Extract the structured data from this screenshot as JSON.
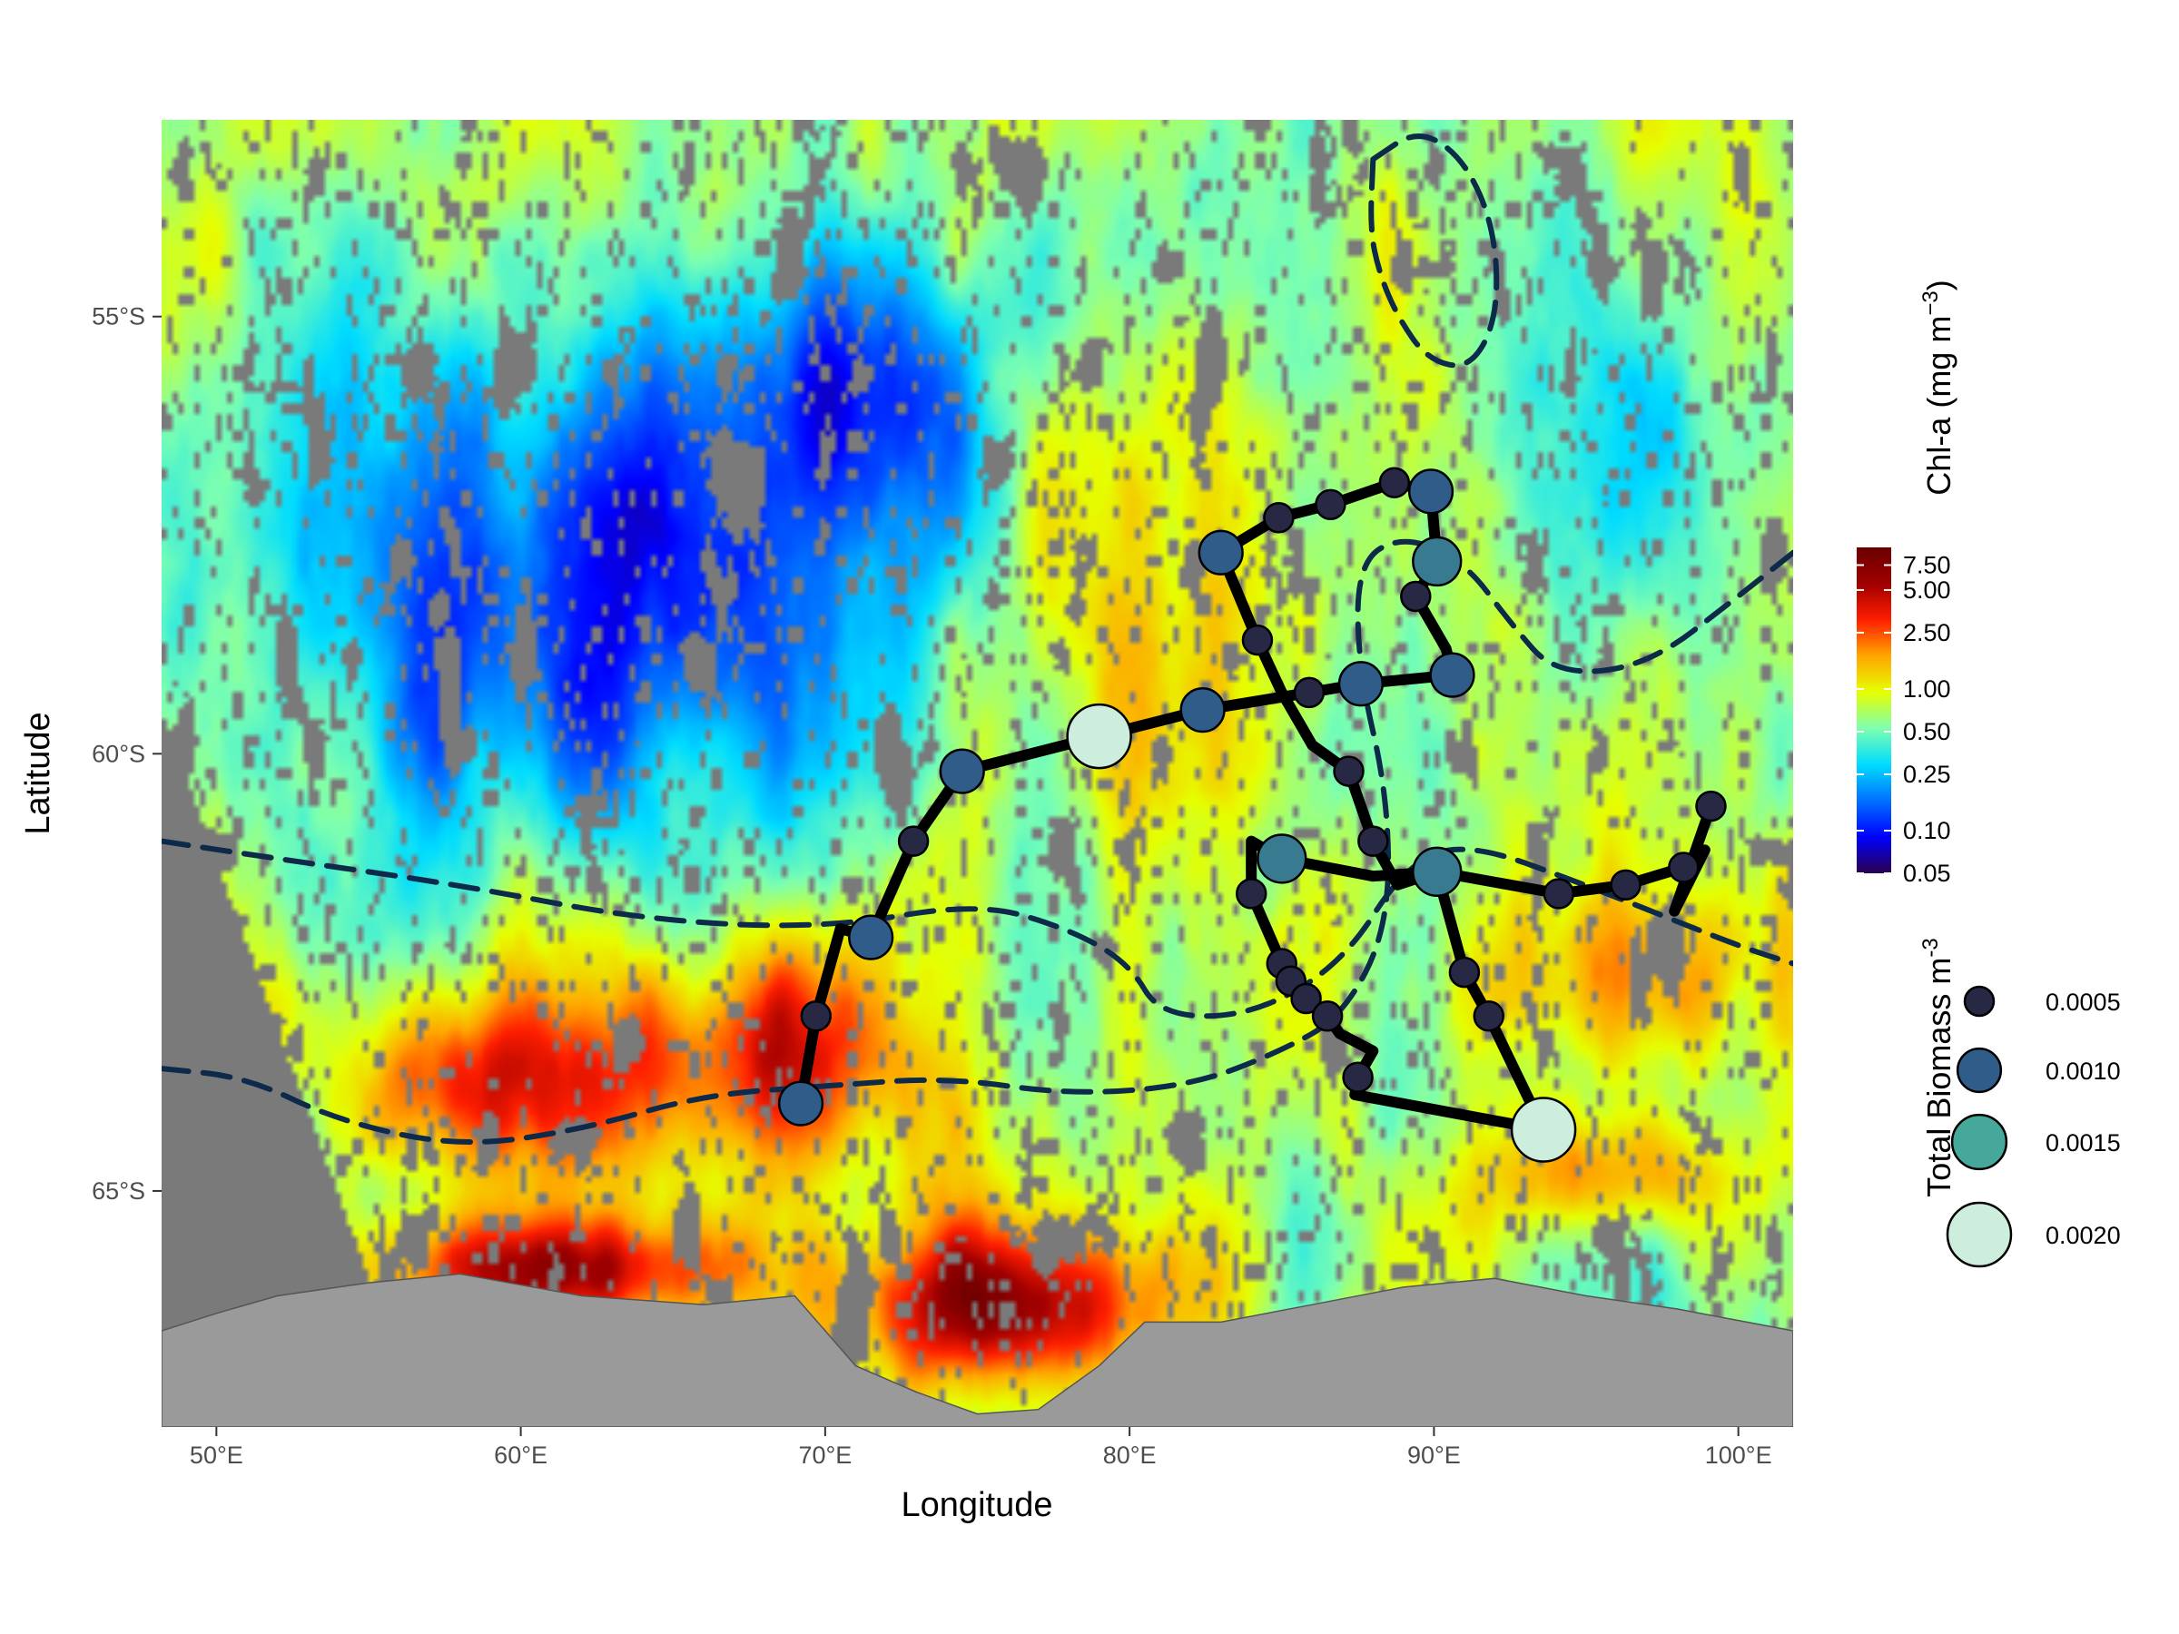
{
  "chart_data": {
    "type": "map",
    "xlabel": "Longitude",
    "ylabel": "Latitude",
    "xlim": [
      48.2,
      101.8
    ],
    "ylim": [
      -67.7,
      -52.75
    ],
    "x_ticks": [
      50,
      60,
      70,
      80,
      90,
      100
    ],
    "x_tick_labels": [
      "50°E",
      "60°E",
      "70°E",
      "80°E",
      "90°E",
      "100°E"
    ],
    "y_ticks": [
      -55,
      -60,
      -65
    ],
    "y_tick_labels": [
      "55°S",
      "60°S",
      "65°S"
    ],
    "background": "satellite chlorophyll-a raster",
    "colors": {
      "missing_data": "#7a7a7a",
      "land": "#9a9a9a",
      "track": "#000000",
      "front_lines": "#0d2a4a"
    },
    "colorbar": {
      "title": "Chl-a (mg m",
      "title_superscript": "−3",
      "title_close": ")",
      "scale": "log",
      "ticks": [
        7.5,
        5.0,
        2.5,
        1.0,
        0.5,
        0.25,
        0.1,
        0.05
      ],
      "tick_labels": [
        "7.50",
        "5.00",
        "2.50",
        "1.00",
        "0.50",
        "0.25",
        "0.10",
        "0.05"
      ],
      "range": [
        0.05,
        10
      ],
      "palette": [
        "#2a004e",
        "#0000ff",
        "#0070ff",
        "#00dcff",
        "#7dffb0",
        "#e6ff00",
        "#ffa600",
        "#ff1e00",
        "#a00000",
        "#6a0000"
      ]
    },
    "size_legend": {
      "title": "Total Biomass m",
      "title_superscript": "-3",
      "entries": [
        {
          "value": 0.0005,
          "label": "0.0005",
          "color": "#272844"
        },
        {
          "value": 0.001,
          "label": "0.0010",
          "color": "#2f5c88"
        },
        {
          "value": 0.0015,
          "label": "0.0015",
          "color": "#46a89a"
        },
        {
          "value": 0.002,
          "label": "0.0020",
          "color": "#cdeedc"
        }
      ]
    },
    "track": [
      [
        69.2,
        -64.0
      ],
      [
        69.7,
        -63.0
      ],
      [
        70.5,
        -62.0
      ],
      [
        71.5,
        -62.1
      ],
      [
        72.9,
        -61.0
      ],
      [
        74.5,
        -60.2
      ],
      [
        79.0,
        -59.8
      ],
      [
        82.4,
        -59.5
      ],
      [
        85.9,
        -59.3
      ],
      [
        87.6,
        -59.2
      ],
      [
        90.6,
        -59.1
      ],
      [
        90.4,
        -58.8
      ],
      [
        89.4,
        -58.2
      ],
      [
        90.1,
        -57.8
      ],
      [
        89.9,
        -57.0
      ],
      [
        88.7,
        -56.9
      ],
      [
        86.6,
        -57.15
      ],
      [
        84.9,
        -57.3
      ],
      [
        83.0,
        -57.7
      ],
      [
        84.2,
        -58.7
      ],
      [
        85.0,
        -59.3
      ],
      [
        86.0,
        -59.9
      ],
      [
        87.2,
        -60.2
      ],
      [
        88.0,
        -61.0
      ],
      [
        88.8,
        -61.5
      ],
      [
        90.1,
        -61.35
      ],
      [
        91.0,
        -62.5
      ],
      [
        91.8,
        -63.0
      ],
      [
        93.6,
        -64.3
      ],
      [
        87.4,
        -63.9
      ],
      [
        87.5,
        -63.7
      ],
      [
        88.0,
        -63.4
      ],
      [
        86.9,
        -63.2
      ],
      [
        86.5,
        -63.0
      ],
      [
        85.8,
        -62.8
      ],
      [
        85.0,
        -62.4
      ],
      [
        84.0,
        -61.6
      ],
      [
        84.0,
        -61.0
      ],
      [
        85.0,
        -61.2
      ],
      [
        88.0,
        -61.4
      ],
      [
        90.1,
        -61.35
      ],
      [
        94.1,
        -61.6
      ],
      [
        96.3,
        -61.5
      ],
      [
        98.2,
        -61.3
      ],
      [
        98.9,
        -61.1
      ],
      [
        97.9,
        -61.8
      ],
      [
        99.1,
        -60.6
      ]
    ],
    "stations": [
      {
        "lon": 69.2,
        "lat": -64.0,
        "biomass": 0.001
      },
      {
        "lon": 69.7,
        "lat": -63.0,
        "biomass": 0.0005
      },
      {
        "lon": 71.5,
        "lat": -62.1,
        "biomass": 0.001
      },
      {
        "lon": 72.9,
        "lat": -61.0,
        "biomass": 0.0005
      },
      {
        "lon": 74.5,
        "lat": -60.2,
        "biomass": 0.001
      },
      {
        "lon": 79.0,
        "lat": -59.8,
        "biomass": 0.002
      },
      {
        "lon": 82.4,
        "lat": -59.5,
        "biomass": 0.001
      },
      {
        "lon": 85.9,
        "lat": -59.3,
        "biomass": 0.0005
      },
      {
        "lon": 87.6,
        "lat": -59.2,
        "biomass": 0.001
      },
      {
        "lon": 90.6,
        "lat": -59.1,
        "biomass": 0.001
      },
      {
        "lon": 89.4,
        "lat": -58.2,
        "biomass": 0.0005
      },
      {
        "lon": 90.1,
        "lat": -57.8,
        "biomass": 0.0012
      },
      {
        "lon": 89.9,
        "lat": -57.0,
        "biomass": 0.001
      },
      {
        "lon": 88.7,
        "lat": -56.9,
        "biomass": 0.0005
      },
      {
        "lon": 86.6,
        "lat": -57.15,
        "biomass": 0.0005
      },
      {
        "lon": 84.9,
        "lat": -57.3,
        "biomass": 0.0005
      },
      {
        "lon": 83.0,
        "lat": -57.7,
        "biomass": 0.001
      },
      {
        "lon": 84.2,
        "lat": -58.7,
        "biomass": 0.0005
      },
      {
        "lon": 87.2,
        "lat": -60.2,
        "biomass": 0.0005
      },
      {
        "lon": 88.0,
        "lat": -61.0,
        "biomass": 0.0005
      },
      {
        "lon": 85.0,
        "lat": -61.2,
        "biomass": 0.0012
      },
      {
        "lon": 90.1,
        "lat": -61.35,
        "biomass": 0.0012
      },
      {
        "lon": 84.0,
        "lat": -61.6,
        "biomass": 0.0005
      },
      {
        "lon": 85.0,
        "lat": -62.4,
        "biomass": 0.0005
      },
      {
        "lon": 85.3,
        "lat": -62.6,
        "biomass": 0.0005
      },
      {
        "lon": 85.8,
        "lat": -62.8,
        "biomass": 0.0005
      },
      {
        "lon": 86.5,
        "lat": -63.0,
        "biomass": 0.0005
      },
      {
        "lon": 87.5,
        "lat": -63.7,
        "biomass": 0.0005
      },
      {
        "lon": 91.0,
        "lat": -62.5,
        "biomass": 0.0005
      },
      {
        "lon": 91.8,
        "lat": -63.0,
        "biomass": 0.0005
      },
      {
        "lon": 93.6,
        "lat": -64.3,
        "biomass": 0.002
      },
      {
        "lon": 94.1,
        "lat": -61.6,
        "biomass": 0.0005
      },
      {
        "lon": 96.3,
        "lat": -61.5,
        "biomass": 0.0005
      },
      {
        "lon": 98.2,
        "lat": -61.3,
        "biomass": 0.0005
      },
      {
        "lon": 99.1,
        "lat": -60.6,
        "biomass": 0.0005
      }
    ],
    "fronts": [
      [
        [
          48.2,
          -61.0
        ],
        [
          52.0,
          -61.2
        ],
        [
          58.0,
          -61.5
        ],
        [
          64.0,
          -61.9
        ],
        [
          70.0,
          -62.0
        ],
        [
          75.0,
          -61.7
        ],
        [
          78.0,
          -62.0
        ],
        [
          80.0,
          -62.4
        ],
        [
          81.0,
          -63.0
        ],
        [
          84.0,
          -63.0
        ],
        [
          87.0,
          -62.4
        ],
        [
          89.0,
          -61.3
        ],
        [
          91.0,
          -61.0
        ],
        [
          95.0,
          -61.5
        ],
        [
          100.0,
          -62.2
        ],
        [
          101.8,
          -62.4
        ]
      ],
      [
        [
          48.2,
          -63.6
        ],
        [
          51.0,
          -63.7
        ],
        [
          54.0,
          -64.2
        ],
        [
          58.0,
          -64.5
        ],
        [
          62.0,
          -64.3
        ],
        [
          66.0,
          -63.9
        ],
        [
          70.0,
          -63.8
        ],
        [
          74.0,
          -63.7
        ],
        [
          78.0,
          -63.9
        ],
        [
          82.0,
          -63.8
        ],
        [
          85.0,
          -63.4
        ],
        [
          87.0,
          -63.0
        ],
        [
          88.5,
          -62.0
        ],
        [
          88.5,
          -60.5
        ],
        [
          87.5,
          -59.0
        ],
        [
          87.5,
          -57.8
        ],
        [
          89.0,
          -57.5
        ],
        [
          91.0,
          -57.8
        ],
        [
          92.5,
          -58.5
        ],
        [
          94.0,
          -59.1
        ],
        [
          97.0,
          -59.0
        ],
        [
          100.0,
          -58.2
        ],
        [
          101.8,
          -57.7
        ]
      ],
      [
        [
          88.0,
          -53.2
        ],
        [
          89.5,
          -52.85
        ],
        [
          91.0,
          -53.2
        ],
        [
          92.0,
          -54.0
        ],
        [
          92.1,
          -55.0
        ],
        [
          91.2,
          -55.6
        ],
        [
          89.8,
          -55.5
        ],
        [
          88.8,
          -55.0
        ],
        [
          88.2,
          -54.5
        ],
        [
          87.9,
          -54.0
        ],
        [
          88.0,
          -53.2
        ]
      ]
    ]
  }
}
